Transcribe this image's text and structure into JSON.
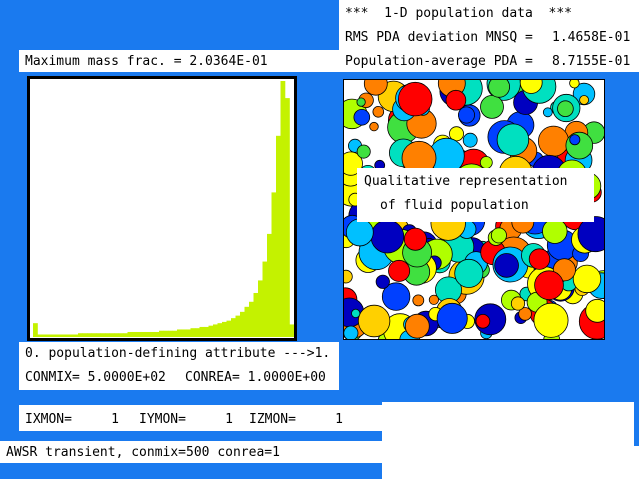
{
  "header": {
    "title": "***  1-D population data  ***",
    "rms_label": "RMS PDA deviation MNSQ =",
    "rms_value": "1.4658E-01",
    "avg_label": "Population-average PDA =",
    "avg_value": "8.7155E-01"
  },
  "max_mass": "Maximum mass frac. = 2.0364E-01",
  "qualitative": {
    "line1": "Qualitative representation",
    "line2": "of fluid population"
  },
  "attribute": {
    "line1": "0. population-defining attribute --->1.",
    "conmix": "CONMIX= 5.0000E+02",
    "conrea": "CONREA= 1.0000E+00"
  },
  "monitor": {
    "ixmon": "IXMON=     1",
    "iymon": "IYMON=     1",
    "izmon": "IZMON=     1"
  },
  "status": "AWSR transient, conmix=500 conrea=1",
  "colors": {
    "background": "#1a7aef",
    "histogram_bar": "#c4f200",
    "particle_palette": [
      "#ff0000",
      "#ff8000",
      "#ffd000",
      "#ffff00",
      "#b0ff00",
      "#40e040",
      "#00e0c0",
      "#00c0ff",
      "#0040ff",
      "#0000c0"
    ]
  },
  "chart_data": {
    "type": "bar",
    "title": "",
    "xlabel": "",
    "ylabel": "",
    "xlim": [
      0,
      1
    ],
    "ylim": [
      0,
      0.2036
    ],
    "values": [
      0.011,
      0.002,
      0.002,
      0.002,
      0.002,
      0.002,
      0.002,
      0.002,
      0.002,
      0.002,
      0.003,
      0.003,
      0.003,
      0.003,
      0.003,
      0.003,
      0.003,
      0.003,
      0.003,
      0.003,
      0.003,
      0.004,
      0.004,
      0.004,
      0.004,
      0.004,
      0.004,
      0.004,
      0.005,
      0.005,
      0.005,
      0.005,
      0.006,
      0.006,
      0.006,
      0.007,
      0.007,
      0.008,
      0.008,
      0.009,
      0.01,
      0.011,
      0.012,
      0.013,
      0.015,
      0.017,
      0.02,
      0.024,
      0.028,
      0.035,
      0.045,
      0.06,
      0.082,
      0.115,
      0.16,
      0.2036,
      0.19,
      0.01
    ]
  }
}
